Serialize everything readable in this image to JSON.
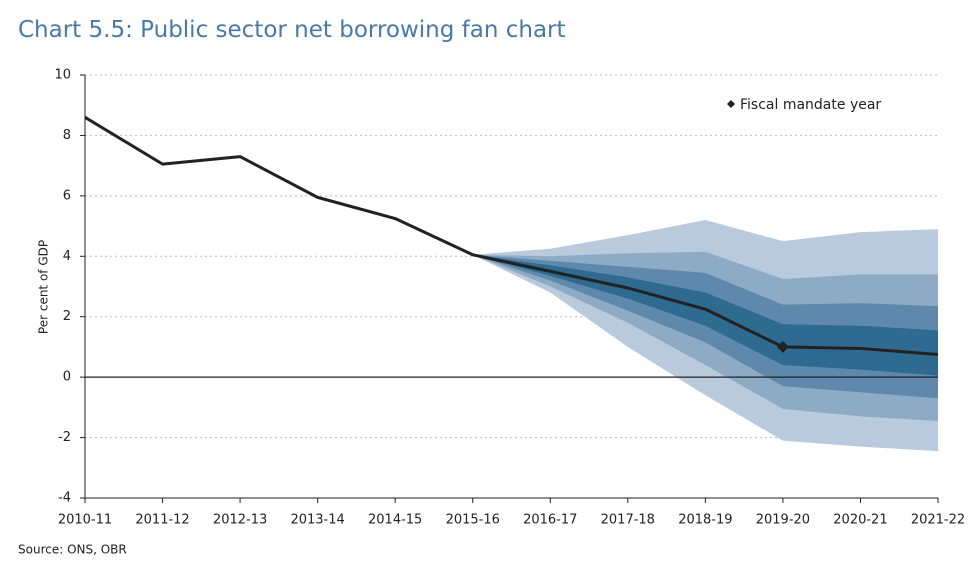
{
  "chart_data": {
    "type": "fan",
    "title": "Chart 5.5: Public sector net borrowing fan chart",
    "y_label": "Per cent of GDP",
    "source": "Source: ONS, OBR",
    "categories": [
      "2010-11",
      "2011-12",
      "2012-13",
      "2013-14",
      "2014-15",
      "2015-16",
      "2016-17",
      "2017-18",
      "2018-19",
      "2019-20",
      "2020-21",
      "2021-22"
    ],
    "values": [
      8.6,
      7.05,
      7.3,
      5.95,
      5.25,
      4.05,
      3.5,
      2.95,
      2.25,
      1.0,
      0.95,
      0.75
    ],
    "color": "#222222",
    "marker": {
      "label": "Fiscal mandate year",
      "category": "2019-20",
      "color": "#222222"
    },
    "bands": [
      {
        "color": "#b9cadd",
        "upper": [
          null,
          null,
          null,
          null,
          null,
          4.05,
          4.25,
          4.7,
          5.2,
          4.5,
          4.8,
          4.9
        ],
        "lower": [
          null,
          null,
          null,
          null,
          null,
          4.05,
          2.8,
          1.0,
          -0.6,
          -2.1,
          -2.3,
          -2.45
        ]
      },
      {
        "color": "#8eabc6",
        "upper": [
          null,
          null,
          null,
          null,
          null,
          4.05,
          4.0,
          4.1,
          4.15,
          3.25,
          3.4,
          3.4
        ],
        "lower": [
          null,
          null,
          null,
          null,
          null,
          4.05,
          3.0,
          1.8,
          0.4,
          -1.05,
          -1.3,
          -1.45
        ]
      },
      {
        "color": "#5f89ac",
        "upper": [
          null,
          null,
          null,
          null,
          null,
          4.05,
          3.85,
          3.65,
          3.45,
          2.4,
          2.45,
          2.35
        ],
        "lower": [
          null,
          null,
          null,
          null,
          null,
          4.05,
          3.2,
          2.2,
          1.15,
          -0.3,
          -0.5,
          -0.7
        ]
      },
      {
        "color": "#2f6a91",
        "upper": [
          null,
          null,
          null,
          null,
          null,
          4.05,
          3.7,
          3.3,
          2.8,
          1.75,
          1.7,
          1.55
        ],
        "lower": [
          null,
          null,
          null,
          null,
          null,
          4.05,
          3.35,
          2.6,
          1.7,
          0.4,
          0.25,
          0.05
        ]
      }
    ],
    "ylim": [
      -4,
      10
    ],
    "yticks": [
      -4,
      -2,
      0,
      2,
      4,
      6,
      8,
      10
    ],
    "grid": true
  }
}
